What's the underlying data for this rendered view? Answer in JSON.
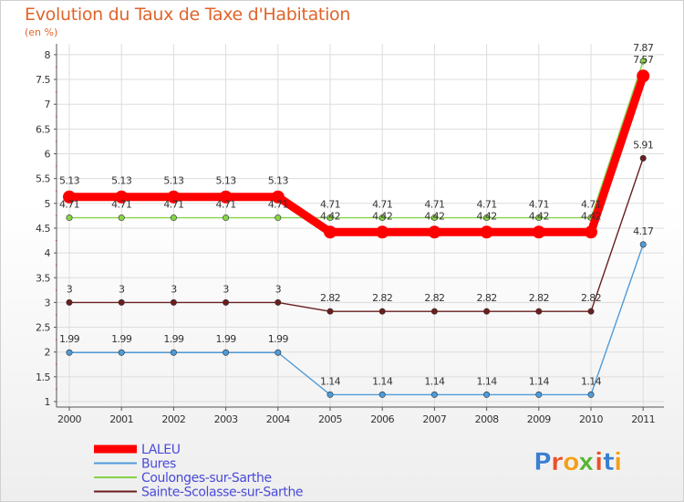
{
  "title": "Evolution du Taux de Taxe d'Habitation",
  "subtitle": "(en %)",
  "brand": {
    "letters": [
      "P",
      "r",
      "o",
      "x",
      "i",
      "t",
      "i"
    ],
    "colors": [
      "#3a7fd0",
      "#e8512b",
      "#f2a01b",
      "#5bb537",
      "#e8512b",
      "#3a7fd0",
      "#f2a01b"
    ]
  },
  "chart_data": {
    "type": "line",
    "title": "Evolution du Taux de Taxe d'Habitation",
    "ylabel": "(en %)",
    "xlabel": "",
    "ylim": [
      1,
      8
    ],
    "yticks": [
      1,
      1.5,
      2,
      2.5,
      3,
      3.5,
      4,
      4.5,
      5,
      5.5,
      6,
      6.5,
      7,
      7.5,
      8
    ],
    "categories": [
      "2000",
      "2001",
      "2002",
      "2003",
      "2004",
      "2005",
      "2006",
      "2007",
      "2008",
      "2009",
      "2010",
      "2011"
    ],
    "series": [
      {
        "name": "LALEU",
        "color": "#ff0000",
        "width": "thick",
        "values": [
          5.13,
          5.13,
          5.13,
          5.13,
          5.13,
          4.42,
          4.42,
          4.42,
          4.42,
          4.42,
          4.42,
          7.57
        ],
        "labels": [
          "5.13",
          "5.13",
          "5.13",
          "5.13",
          "5.13",
          "4.42",
          "4.42",
          "4.42",
          "4.42",
          "4.42",
          "4.42",
          "7.57"
        ]
      },
      {
        "name": "Bures",
        "color": "#4f9bd8",
        "width": "thin",
        "values": [
          1.99,
          1.99,
          1.99,
          1.99,
          1.99,
          1.14,
          1.14,
          1.14,
          1.14,
          1.14,
          1.14,
          4.17
        ],
        "labels": [
          "1.99",
          "1.99",
          "1.99",
          "1.99",
          "1.99",
          "1.14",
          "1.14",
          "1.14",
          "1.14",
          "1.14",
          "1.14",
          "4.17"
        ]
      },
      {
        "name": "Coulonges-sur-Sarthe",
        "color": "#88d348",
        "width": "thin",
        "values": [
          4.71,
          4.71,
          4.71,
          4.71,
          4.71,
          4.71,
          4.71,
          4.71,
          4.71,
          4.71,
          4.71,
          7.87
        ],
        "labels": [
          "4.71",
          "4.71",
          "4.71",
          "4.71",
          "4.71",
          "4.71",
          "4.71",
          "4.71",
          "4.71",
          "4.71",
          "4.71",
          "7.87"
        ]
      },
      {
        "name": "Sainte-Scolasse-sur-Sarthe",
        "color": "#6b1e1e",
        "width": "thin",
        "values": [
          3,
          3,
          3,
          3,
          3,
          2.82,
          2.82,
          2.82,
          2.82,
          2.82,
          2.82,
          5.91
        ],
        "labels": [
          "3",
          "3",
          "3",
          "3",
          "3",
          "2.82",
          "2.82",
          "2.82",
          "2.82",
          "2.82",
          "2.82",
          "5.91"
        ]
      }
    ],
    "legend": [
      "LALEU",
      "Bures",
      "Coulonges-sur-Sarthe",
      "Sainte-Scolasse-sur-Sarthe"
    ],
    "legend_position": "bottom-left",
    "grid": true
  }
}
